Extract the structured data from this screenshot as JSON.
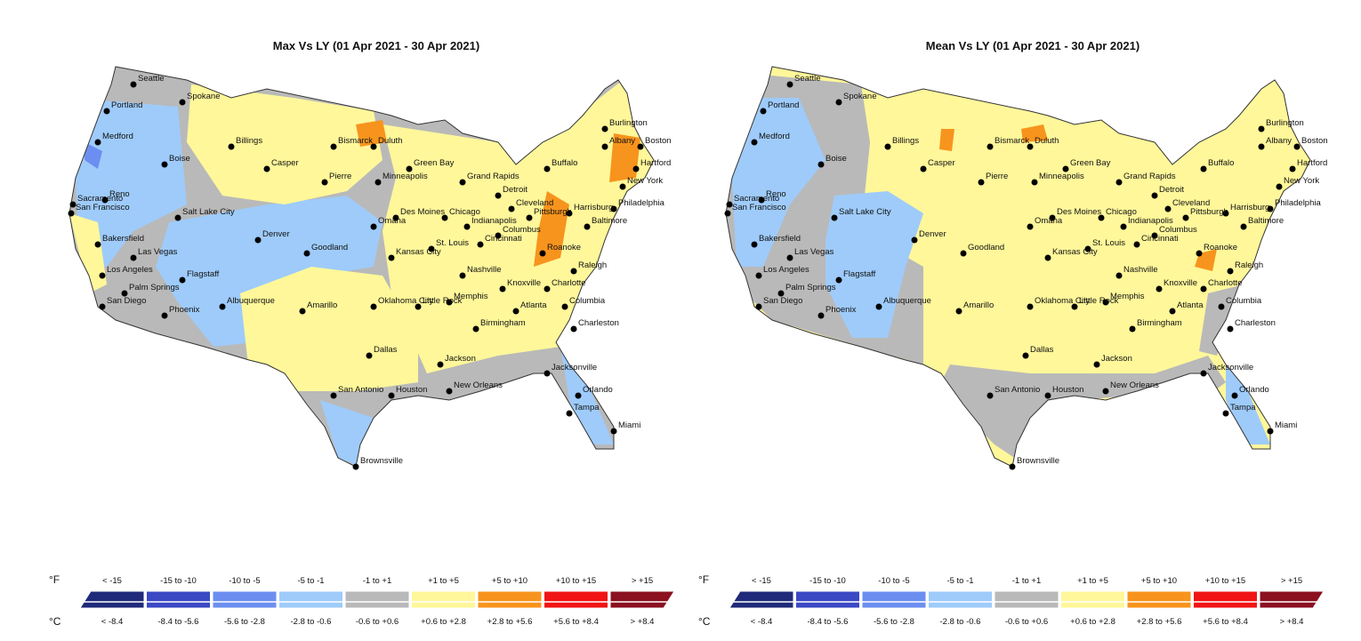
{
  "maps": [
    {
      "title": "Max Vs LY (01 Apr 2021 - 30 Apr 2021)"
    },
    {
      "title": "Mean Vs LY (01 Apr 2021 - 30 Apr 2021)"
    }
  ],
  "cities": [
    "Seattle",
    "Portland",
    "Spokane",
    "Medford",
    "Boise",
    "Billings",
    "Bismarck",
    "Duluth",
    "Sacramento",
    "Reno",
    "San Francisco",
    "Salt Lake City",
    "Casper",
    "Pierre",
    "Minneapolis",
    "Green Bay",
    "Grand Rapids",
    "Detroit",
    "Burlington",
    "Albany",
    "Boston",
    "Buffalo",
    "Hartford",
    "New York",
    "Harrisburg",
    "Philadelphia",
    "Pittsburgh",
    "Cleveland",
    "Baltimore",
    "Chicago",
    "Des Moines",
    "Omaha",
    "Denver",
    "Goodland",
    "Kansas City",
    "St. Louis",
    "Indianapolis",
    "Columbus",
    "Cincinnati",
    "Roanoke",
    "Bakersfield",
    "Las Vegas",
    "Los Angeles",
    "Palm Springs",
    "Flagstaff",
    "San Diego",
    "Phoenix",
    "Albuquerque",
    "Amarillo",
    "Oklahoma City",
    "Nashville",
    "Knoxville",
    "Raleigh",
    "Charlotte",
    "Memphis",
    "Little Rock",
    "Atlanta",
    "Columbia",
    "Birmingham",
    "Charleston",
    "Dallas",
    "Jackson",
    "Jacksonville",
    "New Orleans",
    "San Antonio",
    "Houston",
    "Orlando",
    "Tampa",
    "Miami",
    "Brownsville"
  ],
  "legend": {
    "fahrenheit_label": "°F",
    "celsius_label": "°C",
    "items": [
      {
        "fahrenheit": "< -15",
        "celsius": "< -8.4",
        "color": "#1f2a7a"
      },
      {
        "fahrenheit": "-15 to -10",
        "celsius": "-8.4 to -5.6",
        "color": "#3a48c4"
      },
      {
        "fahrenheit": "-10 to -5",
        "celsius": "-5.6 to -2.8",
        "color": "#6b8ef0"
      },
      {
        "fahrenheit": "-5 to -1",
        "celsius": "-2.8 to -0.6",
        "color": "#9ecbfa"
      },
      {
        "fahrenheit": "-1 to +1",
        "celsius": "-0.6 to +0.6",
        "color": "#b9b9b9"
      },
      {
        "fahrenheit": "+1 to +5",
        "celsius": "+0.6 to +2.8",
        "color": "#fff79a"
      },
      {
        "fahrenheit": "+5 to +10",
        "celsius": "+2.8 to +5.6",
        "color": "#f7941d"
      },
      {
        "fahrenheit": "+10 to +15",
        "celsius": "+5.6 to +8.4",
        "color": "#f01414"
      },
      {
        "fahrenheit": "> +15",
        "celsius": "> +8.4",
        "color": "#8b1020"
      }
    ]
  }
}
